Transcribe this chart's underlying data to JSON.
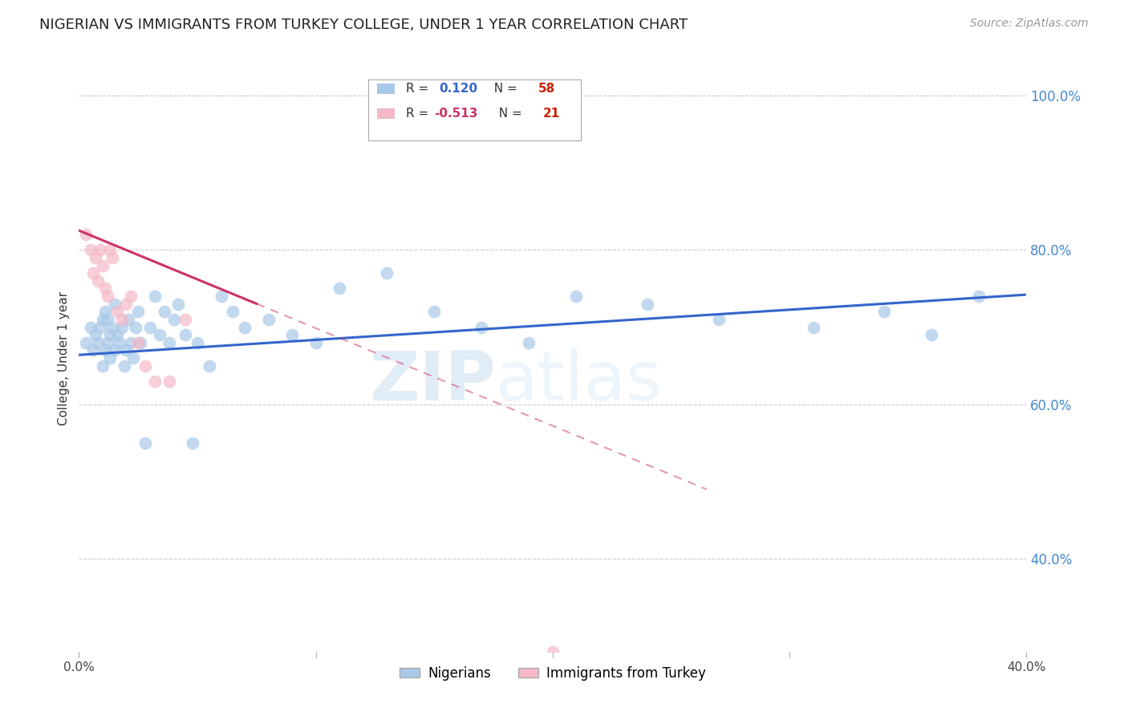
{
  "title": "NIGERIAN VS IMMIGRANTS FROM TURKEY COLLEGE, UNDER 1 YEAR CORRELATION CHART",
  "source": "Source: ZipAtlas.com",
  "ylabel_left": "College, Under 1 year",
  "xlim": [
    0.0,
    0.4
  ],
  "ylim": [
    0.28,
    1.04
  ],
  "xtick_positions": [
    0.0,
    0.1,
    0.2,
    0.3,
    0.4
  ],
  "xtick_labels": [
    "0.0%",
    "",
    "",
    "",
    "40.0%"
  ],
  "yticks_right": [
    0.4,
    0.6,
    0.8,
    1.0
  ],
  "ytick_right_labels": [
    "40.0%",
    "60.0%",
    "80.0%",
    "100.0%"
  ],
  "legend_blue_r": "0.120",
  "legend_blue_n": "58",
  "legend_pink_r": "-0.513",
  "legend_pink_n": "21",
  "legend_label_blue": "Nigerians",
  "legend_label_pink": "Immigrants from Turkey",
  "watermark_zip": "ZIP",
  "watermark_atlas": "atlas",
  "blue_color": "#a8c8e8",
  "pink_color": "#f4b8c8",
  "blue_line_color": "#3366cc",
  "pink_line_color": "#cc3366",
  "blue_scatter_x": [
    0.003,
    0.005,
    0.006,
    0.007,
    0.008,
    0.009,
    0.01,
    0.01,
    0.011,
    0.011,
    0.012,
    0.012,
    0.013,
    0.013,
    0.014,
    0.015,
    0.015,
    0.016,
    0.017,
    0.018,
    0.019,
    0.02,
    0.021,
    0.022,
    0.023,
    0.024,
    0.025,
    0.026,
    0.028,
    0.03,
    0.032,
    0.034,
    0.036,
    0.038,
    0.04,
    0.042,
    0.045,
    0.048,
    0.05,
    0.055,
    0.06,
    0.065,
    0.07,
    0.08,
    0.09,
    0.1,
    0.11,
    0.13,
    0.15,
    0.17,
    0.19,
    0.21,
    0.24,
    0.27,
    0.31,
    0.34,
    0.36,
    0.38
  ],
  "blue_scatter_y": [
    0.68,
    0.7,
    0.67,
    0.69,
    0.68,
    0.7,
    0.65,
    0.71,
    0.67,
    0.72,
    0.68,
    0.71,
    0.66,
    0.69,
    0.7,
    0.67,
    0.73,
    0.69,
    0.68,
    0.7,
    0.65,
    0.67,
    0.71,
    0.68,
    0.66,
    0.7,
    0.72,
    0.68,
    0.55,
    0.7,
    0.74,
    0.69,
    0.72,
    0.68,
    0.71,
    0.73,
    0.69,
    0.55,
    0.68,
    0.65,
    0.74,
    0.72,
    0.7,
    0.71,
    0.69,
    0.68,
    0.75,
    0.77,
    0.72,
    0.7,
    0.68,
    0.74,
    0.73,
    0.71,
    0.7,
    0.72,
    0.69,
    0.74
  ],
  "pink_scatter_x": [
    0.003,
    0.005,
    0.006,
    0.007,
    0.008,
    0.009,
    0.01,
    0.011,
    0.012,
    0.013,
    0.014,
    0.016,
    0.018,
    0.02,
    0.022,
    0.025,
    0.028,
    0.032,
    0.038,
    0.045,
    0.2
  ],
  "pink_scatter_y": [
    0.82,
    0.8,
    0.77,
    0.79,
    0.76,
    0.8,
    0.78,
    0.75,
    0.74,
    0.8,
    0.79,
    0.72,
    0.71,
    0.73,
    0.74,
    0.68,
    0.65,
    0.63,
    0.63,
    0.71,
    0.28
  ],
  "blue_trend_x0": 0.0,
  "blue_trend_x1": 0.4,
  "blue_trend_y0": 0.664,
  "blue_trend_y1": 0.742,
  "pink_trend_x0": 0.0,
  "pink_trend_solid_x1": 0.075,
  "pink_trend_x1": 0.265,
  "pink_trend_y0": 0.825,
  "pink_trend_y1": 0.49,
  "background_color": "#ffffff",
  "grid_color": "#cccccc",
  "title_color": "#222222",
  "right_axis_color": "#4488cc",
  "title_fontsize": 13,
  "axis_label_fontsize": 11,
  "legend_r_color_blue": "#3366cc",
  "legend_n_color_blue": "#cc3300",
  "legend_r_color_pink": "#cc3366",
  "legend_n_color_pink": "#cc3300"
}
